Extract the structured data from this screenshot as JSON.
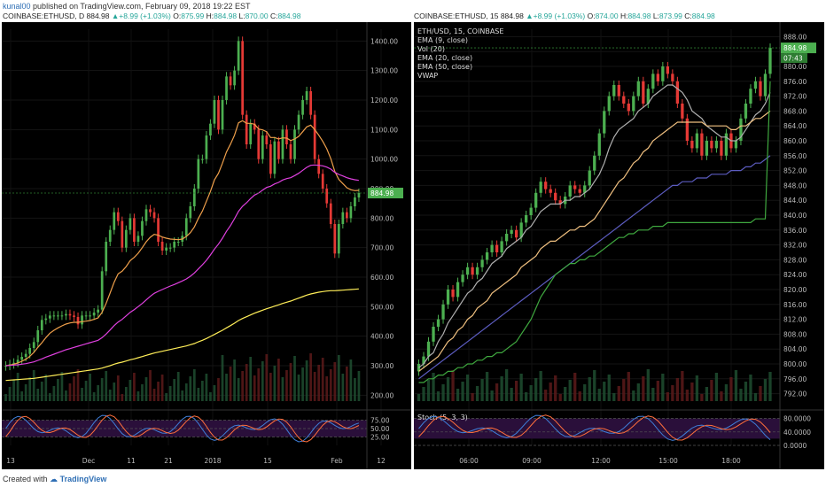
{
  "header": {
    "user": "kunal00",
    "published_text": "published on TradingView.com, February 09, 2018 19:22 EST"
  },
  "footer": {
    "created_with": "Created with",
    "brand": "TradingView"
  },
  "chart_data": [
    {
      "type": "candlestick",
      "symbol": "COINBASE:ETHUSD",
      "interval": "D",
      "price": "884.98",
      "change": "+8.99 (+1.03%)",
      "open": "875.99",
      "high": "884.98",
      "low": "870.00",
      "close": "884.98",
      "last_price_label": "884.98",
      "y_ticks": [
        "1400.00",
        "1300.00",
        "1200.00",
        "1100.00",
        "1000.00",
        "900.00",
        "800.00",
        "700.00",
        "600.00",
        "500.00",
        "400.00",
        "300.00",
        "200.00"
      ],
      "x_ticks": [
        "13",
        "Dec",
        "11",
        "21",
        "2018",
        "15",
        "Feb",
        "12"
      ],
      "ylim": [
        180,
        1440
      ],
      "indicator": {
        "name": "Stochastic",
        "levels": [
          "75.00",
          "50.00",
          "25.00"
        ],
        "ylim": [
          0,
          100
        ]
      },
      "series": [
        {
          "name": "close",
          "values": [
            300,
            305,
            310,
            320,
            330,
            340,
            360,
            380,
            420,
            455,
            460,
            470,
            470,
            470,
            470,
            475,
            470,
            465,
            440,
            470,
            470,
            470,
            480,
            490,
            620,
            720,
            760,
            820,
            790,
            700,
            760,
            800,
            720,
            740,
            790,
            830,
            820,
            800,
            720,
            690,
            700,
            700,
            720,
            720,
            740,
            800,
            840,
            900,
            1000,
            1000,
            1080,
            1120,
            1200,
            1100,
            1200,
            1280,
            1250,
            1300,
            1400,
            1150,
            1050,
            1120,
            1100,
            1000,
            1080,
            1050,
            950,
            1060,
            1000,
            1100,
            1050,
            1000,
            1100,
            1150,
            1200,
            1230,
            1150,
            1000,
            950,
            900,
            850,
            780,
            680,
            780,
            820,
            800,
            840,
            870,
            885
          ]
        },
        {
          "name": "ema_fast",
          "color": "#f0a04b",
          "values": [
            300,
            302,
            305,
            309,
            315,
            322,
            332,
            345,
            362,
            378,
            395,
            410,
            420,
            428,
            435,
            441,
            445,
            447,
            447,
            449,
            451,
            453,
            457,
            462,
            481,
            511,
            546,
            583,
            611,
            620,
            636,
            656,
            667,
            681,
            700,
            720,
            735,
            745,
            742,
            736,
            732,
            729,
            728,
            727,
            729,
            738,
            751,
            770,
            799,
            824,
            857,
            890,
            930,
            952,
            986,
            1024,
            1051,
            1081,
            1123,
            1130,
            1121,
            1121,
            1118,
            1102,
            1099,
            1093,
            1073,
            1073,
            1068,
            1072,
            1071,
            1063,
            1068,
            1077,
            1093,
            1109,
            1115,
            1100,
            1081,
            1060,
            1035,
            1001,
            958,
            931,
            917,
            903,
            896,
            893,
            894
          ]
        },
        {
          "name": "ema_mid",
          "color": "#e040e0",
          "values": [
            300,
            301,
            302,
            303,
            305,
            307,
            310,
            313,
            318,
            323,
            329,
            334,
            339,
            344,
            349,
            354,
            358,
            362,
            366,
            370,
            374,
            378,
            382,
            386,
            395,
            407,
            421,
            436,
            448,
            457,
            469,
            481,
            490,
            500,
            511,
            523,
            535,
            545,
            552,
            558,
            564,
            570,
            575,
            581,
            587,
            594,
            603,
            614,
            628,
            642,
            657,
            675,
            695,
            712,
            732,
            755,
            775,
            798,
            823,
            840,
            852,
            866,
            878,
            885,
            895,
            904,
            908,
            916,
            921,
            929,
            934,
            937,
            944,
            952,
            962,
            972,
            979,
            980,
            979,
            977,
            973,
            966,
            955,
            948,
            943,
            937,
            933,
            930,
            928
          ]
        },
        {
          "name": "ema_slow",
          "color": "#ffee58",
          "values": [
            250,
            251,
            252,
            253,
            254,
            255,
            256,
            257,
            259,
            261,
            263,
            265,
            267,
            269,
            271,
            273,
            275,
            277,
            279,
            281,
            283,
            285,
            287,
            289,
            292,
            296,
            300,
            305,
            309,
            312,
            316,
            320,
            323,
            327,
            331,
            335,
            339,
            343,
            346,
            349,
            352,
            355,
            358,
            361,
            364,
            367,
            371,
            375,
            381,
            386,
            392,
            399,
            406,
            413,
            420,
            428,
            436,
            444,
            453,
            460,
            466,
            472,
            478,
            483,
            488,
            493,
            497,
            502,
            506,
            511,
            515,
            519,
            524,
            529,
            534,
            539,
            543,
            546,
            549,
            551,
            553,
            554,
            554,
            555,
            556,
            557,
            558,
            559,
            560
          ]
        }
      ]
    },
    {
      "type": "candlestick",
      "symbol": "COINBASE:ETHUSD",
      "interval": "15",
      "title": "ETH/USD, 15, COINBASE",
      "price": "884.98",
      "change": "+8.99 (+1.03%)",
      "open": "874.00",
      "high": "884.98",
      "low": "873.99",
      "close": "884.98",
      "last_price_label": "884.98",
      "countdown_label": "07:43",
      "legend": [
        "EMA (9, close)",
        "Vol (20)",
        "EMA (20, close)",
        "EMA (50, close)",
        "VWAP"
      ],
      "y_ticks": [
        "888.00",
        "884.00",
        "880.00",
        "876.00",
        "872.00",
        "868.00",
        "864.00",
        "860.00",
        "856.00",
        "852.00",
        "848.00",
        "844.00",
        "840.00",
        "836.00",
        "832.00",
        "828.00",
        "824.00",
        "820.00",
        "816.00",
        "812.00",
        "808.00",
        "804.00",
        "800.00",
        "796.00",
        "792.00"
      ],
      "x_ticks": [
        "06:00",
        "09:00",
        "12:00",
        "15:00",
        "18:00"
      ],
      "ylim": [
        790,
        890
      ],
      "indicator": {
        "name": "Stoch (5, 3, 3)",
        "levels": [
          "80.0000",
          "40.0000",
          "0.0000"
        ],
        "ylim": [
          0,
          100
        ]
      },
      "series": [
        {
          "name": "close",
          "values": [
            800,
            802,
            806,
            810,
            812,
            816,
            820,
            818,
            822,
            824,
            826,
            824,
            826,
            828,
            830,
            832,
            830,
            833,
            835,
            836,
            834,
            838,
            840,
            842,
            846,
            849,
            847,
            846,
            844,
            843,
            845,
            848,
            847,
            846,
            848,
            852,
            856,
            862,
            868,
            872,
            875,
            872,
            870,
            868,
            872,
            876,
            870,
            874,
            878,
            876,
            880,
            878,
            876,
            870,
            866,
            860,
            858,
            862,
            856,
            860,
            858,
            860,
            856,
            862,
            858,
            860,
            866,
            870,
            874,
            876,
            872,
            878,
            884.98
          ]
        },
        {
          "name": "ema_9",
          "color": "#b0b0b0",
          "values": [
            799,
            800,
            802,
            803,
            806,
            808,
            811,
            813,
            815,
            817,
            819,
            820,
            822,
            823,
            825,
            827,
            828,
            829,
            831,
            832,
            833,
            834,
            836,
            837,
            839,
            841,
            842,
            843,
            843,
            843,
            844,
            844,
            845,
            845,
            846,
            847,
            849,
            851,
            854,
            858,
            861,
            863,
            864,
            865,
            866,
            868,
            869,
            870,
            872,
            873,
            874,
            875,
            875,
            874,
            873,
            871,
            868,
            867,
            866,
            864,
            863,
            862,
            861,
            861,
            860,
            860,
            861,
            863,
            865,
            867,
            868,
            870,
            873
          ]
        },
        {
          "name": "ema_20",
          "color": "#f0c080",
          "values": [
            798,
            799,
            800,
            801,
            802,
            804,
            806,
            807,
            809,
            810,
            812,
            813,
            815,
            816,
            817,
            819,
            820,
            821,
            822,
            823,
            824,
            826,
            827,
            828,
            829,
            831,
            832,
            833,
            833,
            834,
            835,
            836,
            836,
            837,
            837,
            838,
            839,
            841,
            843,
            845,
            847,
            849,
            850,
            852,
            854,
            855,
            857,
            858,
            860,
            861,
            862,
            863,
            864,
            865,
            865,
            865,
            865,
            865,
            865,
            864,
            864,
            864,
            864,
            864,
            863,
            863,
            864,
            864,
            865,
            866,
            866,
            867,
            868
          ]
        },
        {
          "name": "ema_50",
          "color": "#5c5cc0",
          "values": [
            796,
            797,
            798,
            799,
            800,
            801,
            802,
            803,
            804,
            805,
            806,
            807,
            808,
            809,
            810,
            811,
            812,
            813,
            814,
            815,
            816,
            817,
            818,
            819,
            820,
            821,
            822,
            823,
            824,
            825,
            826,
            827,
            828,
            829,
            830,
            831,
            832,
            833,
            834,
            835,
            836,
            837,
            838,
            839,
            840,
            841,
            842,
            843,
            844,
            845,
            846,
            847,
            848,
            848,
            849,
            849,
            849,
            850,
            850,
            850,
            851,
            851,
            851,
            851,
            852,
            852,
            852,
            853,
            853,
            854,
            854,
            855,
            856
          ]
        },
        {
          "name": "vwap",
          "color": "#3fa83f",
          "values": [
            795,
            795,
            796,
            796,
            797,
            797,
            798,
            798,
            799,
            799,
            800,
            800,
            801,
            801,
            802,
            802,
            803,
            803,
            804,
            805,
            806,
            808,
            810,
            812,
            815,
            818,
            820,
            822,
            824,
            825,
            826,
            827,
            827,
            828,
            828,
            829,
            829,
            830,
            831,
            832,
            833,
            834,
            834,
            835,
            835,
            836,
            836,
            836,
            837,
            837,
            837,
            838,
            838,
            838,
            838,
            838,
            838,
            838,
            838,
            838,
            838,
            838,
            838,
            838,
            838,
            838,
            838,
            838,
            838,
            839,
            839,
            839,
            876
          ]
        }
      ]
    }
  ]
}
